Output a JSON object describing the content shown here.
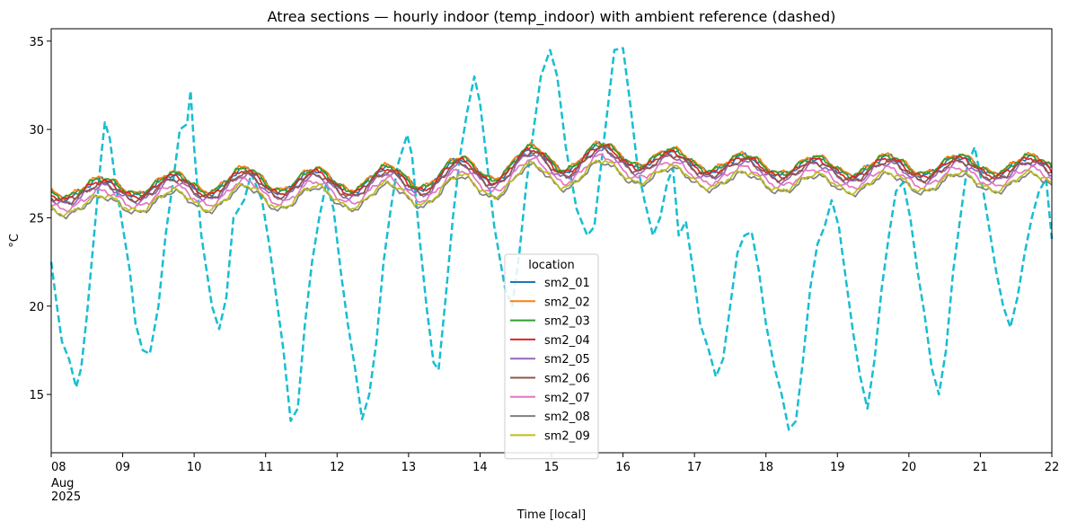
{
  "chart_data": {
    "type": "line",
    "title": "Atrea sections — hourly indoor (temp_indoor) with ambient reference (dashed)",
    "xlabel": "Time [local]",
    "ylabel": "°C",
    "xlim": [
      0,
      14
    ],
    "ylim": [
      11.7,
      35.7
    ],
    "yticks": [
      15,
      20,
      25,
      30,
      35
    ],
    "xticks": [
      {
        "value": 0,
        "label": "08",
        "sub": [
          "Aug",
          "2025"
        ]
      },
      {
        "value": 1,
        "label": "09"
      },
      {
        "value": 2,
        "label": "10"
      },
      {
        "value": 3,
        "label": "11"
      },
      {
        "value": 4,
        "label": "12"
      },
      {
        "value": 5,
        "label": "13"
      },
      {
        "value": 6,
        "label": "14"
      },
      {
        "value": 7,
        "label": "15"
      },
      {
        "value": 8,
        "label": "16"
      },
      {
        "value": 9,
        "label": "17"
      },
      {
        "value": 10,
        "label": "18"
      },
      {
        "value": 11,
        "label": "19"
      },
      {
        "value": 12,
        "label": "20"
      },
      {
        "value": 13,
        "label": "21"
      },
      {
        "value": 14,
        "label": "22"
      }
    ],
    "legend": {
      "title": "location",
      "position": "lower-center"
    },
    "indoor_daily_mean": [
      26.2,
      26.4,
      26.6,
      26.8,
      26.7,
      26.9,
      27.4,
      28.0,
      28.2,
      27.8,
      27.6,
      27.5,
      27.6,
      27.6
    ],
    "indoor_daily_amplitude": [
      0.45,
      0.5,
      0.6,
      0.7,
      0.6,
      0.7,
      0.75,
      0.8,
      0.6,
      0.5,
      0.5,
      0.5,
      0.55,
      0.5
    ],
    "series": [
      {
        "name": "sm2_01",
        "color": "#1f77b4",
        "offset": 0.35
      },
      {
        "name": "sm2_02",
        "color": "#ff7f0e",
        "offset": 0.45
      },
      {
        "name": "sm2_03",
        "color": "#2ca02c",
        "offset": 0.4
      },
      {
        "name": "sm2_04",
        "color": "#d62728",
        "offset": 0.25
      },
      {
        "name": "sm2_05",
        "color": "#9467bd",
        "offset": 0.0
      },
      {
        "name": "sm2_06",
        "color": "#8c564b",
        "offset": 0.1
      },
      {
        "name": "sm2_07",
        "color": "#e377c2",
        "offset": -0.3
      },
      {
        "name": "sm2_08",
        "color": "#7f7f7f",
        "offset": -0.65
      },
      {
        "name": "sm2_09",
        "color": "#bcbd22",
        "offset": -0.55
      }
    ],
    "ambient_reference": {
      "style": "dashed",
      "color": "#17becf",
      "points": [
        [
          0.0,
          22.5
        ],
        [
          0.08,
          20.0
        ],
        [
          0.15,
          18.0
        ],
        [
          0.25,
          17.0
        ],
        [
          0.35,
          15.4
        ],
        [
          0.42,
          16.5
        ],
        [
          0.5,
          19.5
        ],
        [
          0.6,
          24.0
        ],
        [
          0.7,
          28.5
        ],
        [
          0.75,
          30.4
        ],
        [
          0.82,
          29.5
        ],
        [
          0.9,
          27.0
        ],
        [
          1.0,
          24.5
        ],
        [
          1.1,
          22.0
        ],
        [
          1.18,
          19.0
        ],
        [
          1.28,
          17.5
        ],
        [
          1.38,
          17.3
        ],
        [
          1.5,
          20.0
        ],
        [
          1.6,
          24.0
        ],
        [
          1.72,
          27.5
        ],
        [
          1.8,
          30.0
        ],
        [
          1.9,
          30.3
        ],
        [
          1.95,
          32.2
        ],
        [
          2.0,
          29.0
        ],
        [
          2.1,
          24.0
        ],
        [
          2.25,
          20.0
        ],
        [
          2.35,
          18.7
        ],
        [
          2.45,
          20.5
        ],
        [
          2.55,
          25.0
        ],
        [
          2.7,
          26.0
        ],
        [
          2.8,
          27.5
        ],
        [
          2.95,
          26.0
        ],
        [
          3.05,
          23.5
        ],
        [
          3.15,
          20.5
        ],
        [
          3.25,
          17.5
        ],
        [
          3.35,
          13.5
        ],
        [
          3.45,
          14.2
        ],
        [
          3.55,
          19.0
        ],
        [
          3.65,
          22.5
        ],
        [
          3.75,
          25.0
        ],
        [
          3.85,
          27.0
        ],
        [
          3.95,
          25.5
        ],
        [
          4.05,
          22.0
        ],
        [
          4.15,
          19.0
        ],
        [
          4.25,
          16.5
        ],
        [
          4.35,
          13.6
        ],
        [
          4.45,
          15.0
        ],
        [
          4.55,
          18.0
        ],
        [
          4.65,
          22.5
        ],
        [
          4.75,
          25.5
        ],
        [
          4.85,
          28.0
        ],
        [
          4.98,
          29.7
        ],
        [
          5.05,
          28.5
        ],
        [
          5.15,
          24.0
        ],
        [
          5.25,
          20.0
        ],
        [
          5.35,
          16.8
        ],
        [
          5.42,
          16.4
        ],
        [
          5.52,
          20.5
        ],
        [
          5.62,
          25.0
        ],
        [
          5.72,
          28.5
        ],
        [
          5.82,
          31.0
        ],
        [
          5.92,
          33.0
        ],
        [
          6.0,
          31.5
        ],
        [
          6.1,
          28.0
        ],
        [
          6.2,
          24.5
        ],
        [
          6.35,
          21.0
        ],
        [
          6.45,
          20.0
        ],
        [
          6.55,
          23.0
        ],
        [
          6.65,
          27.0
        ],
        [
          6.75,
          30.0
        ],
        [
          6.85,
          33.0
        ],
        [
          6.98,
          34.5
        ],
        [
          7.08,
          33.0
        ],
        [
          7.2,
          29.0
        ],
        [
          7.35,
          25.5
        ],
        [
          7.5,
          24.0
        ],
        [
          7.6,
          24.5
        ],
        [
          7.68,
          27.5
        ],
        [
          7.78,
          31.0
        ],
        [
          7.88,
          34.5
        ],
        [
          8.0,
          34.6
        ],
        [
          8.1,
          31.5
        ],
        [
          8.2,
          28.0
        ],
        [
          8.3,
          26.0
        ],
        [
          8.42,
          24.0
        ],
        [
          8.52,
          25.0
        ],
        [
          8.62,
          27.0
        ],
        [
          8.7,
          27.8
        ],
        [
          8.78,
          24.0
        ],
        [
          8.88,
          24.8
        ],
        [
          8.98,
          22.0
        ],
        [
          9.08,
          19.0
        ],
        [
          9.2,
          17.5
        ],
        [
          9.3,
          16.0
        ],
        [
          9.4,
          17.0
        ],
        [
          9.5,
          20.0
        ],
        [
          9.6,
          23.0
        ],
        [
          9.7,
          24.0
        ],
        [
          9.8,
          24.2
        ],
        [
          9.9,
          22.0
        ],
        [
          10.0,
          19.0
        ],
        [
          10.12,
          16.5
        ],
        [
          10.22,
          15.0
        ],
        [
          10.32,
          13.0
        ],
        [
          10.42,
          13.5
        ],
        [
          10.52,
          17.0
        ],
        [
          10.62,
          21.0
        ],
        [
          10.72,
          23.5
        ],
        [
          10.82,
          24.5
        ],
        [
          10.92,
          26.0
        ],
        [
          11.02,
          24.5
        ],
        [
          11.12,
          21.5
        ],
        [
          11.22,
          18.5
        ],
        [
          11.32,
          16.0
        ],
        [
          11.42,
          14.2
        ],
        [
          11.52,
          17.0
        ],
        [
          11.62,
          21.0
        ],
        [
          11.72,
          24.0
        ],
        [
          11.82,
          26.5
        ],
        [
          11.92,
          27.0
        ],
        [
          12.02,
          25.0
        ],
        [
          12.12,
          22.0
        ],
        [
          12.22,
          19.5
        ],
        [
          12.32,
          16.5
        ],
        [
          12.42,
          15.0
        ],
        [
          12.52,
          17.5
        ],
        [
          12.62,
          22.0
        ],
        [
          12.72,
          25.0
        ],
        [
          12.82,
          28.0
        ],
        [
          12.92,
          29.0
        ],
        [
          13.02,
          27.0
        ],
        [
          13.12,
          24.5
        ],
        [
          13.22,
          22.0
        ],
        [
          13.32,
          20.0
        ],
        [
          13.42,
          18.8
        ],
        [
          13.52,
          20.5
        ],
        [
          13.62,
          23.0
        ],
        [
          13.72,
          25.0
        ],
        [
          13.82,
          26.5
        ],
        [
          13.92,
          27.2
        ],
        [
          14.0,
          23.8
        ]
      ]
    }
  }
}
